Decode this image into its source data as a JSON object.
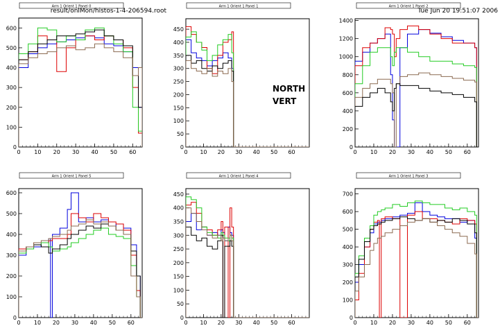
{
  "header": {
    "file_path": "result/onlMon/histos-1-4-206594.root",
    "timestamp": "Tue Jun 20 19:51:07 2006"
  },
  "annotation": {
    "line1": "NORTH",
    "line2": "VERT"
  },
  "series_colors": {
    "blue": "#0000dd",
    "red": "#dd0000",
    "green": "#22cc22",
    "black": "#000000",
    "brown": "#8b6a50"
  },
  "chart_data": [
    {
      "type": "line",
      "title": "Arm 1 Orient 1 Panel 0",
      "xlim": [
        0,
        65
      ],
      "ylim": [
        0,
        650
      ],
      "xticks": [
        0,
        10,
        20,
        30,
        40,
        50,
        60
      ],
      "yticks": [
        0,
        100,
        200,
        300,
        400,
        500,
        600
      ],
      "x": [
        0,
        5,
        10,
        15,
        20,
        25,
        30,
        35,
        40,
        45,
        50,
        55,
        60,
        63,
        65
      ],
      "series": [
        {
          "color": "blue",
          "values": [
            400,
            470,
            500,
            520,
            530,
            540,
            550,
            560,
            550,
            520,
            510,
            480,
            400,
            200,
            0
          ]
        },
        {
          "color": "red",
          "values": [
            440,
            480,
            560,
            540,
            380,
            500,
            540,
            560,
            540,
            560,
            540,
            500,
            300,
            70,
            0
          ]
        },
        {
          "color": "green",
          "values": [
            470,
            520,
            600,
            590,
            530,
            560,
            540,
            590,
            600,
            560,
            520,
            480,
            200,
            80,
            0
          ]
        },
        {
          "color": "black",
          "values": [
            440,
            480,
            520,
            540,
            560,
            560,
            570,
            580,
            590,
            560,
            540,
            510,
            360,
            200,
            0
          ]
        },
        {
          "color": "brown",
          "values": [
            420,
            450,
            470,
            480,
            500,
            510,
            490,
            500,
            520,
            500,
            480,
            450,
            360,
            400,
            0
          ]
        }
      ]
    },
    {
      "type": "line",
      "title": "Arm 1 Orient 1 Panel 1",
      "xlim": [
        0,
        70
      ],
      "ylim": [
        0,
        490
      ],
      "xticks": [
        0,
        10,
        20,
        30,
        40,
        50,
        60
      ],
      "yticks": [
        0,
        50,
        100,
        150,
        200,
        250,
        300,
        350,
        400,
        450
      ],
      "x": [
        0,
        3,
        6,
        9,
        12,
        15,
        18,
        21,
        24,
        26,
        27,
        70
      ],
      "series": [
        {
          "color": "blue",
          "values": [
            410,
            360,
            340,
            330,
            310,
            330,
            340,
            360,
            340,
            300,
            0,
            0
          ]
        },
        {
          "color": "red",
          "values": [
            460,
            430,
            400,
            380,
            300,
            280,
            350,
            400,
            410,
            440,
            0,
            0
          ]
        },
        {
          "color": "green",
          "values": [
            420,
            440,
            400,
            370,
            330,
            350,
            390,
            410,
            430,
            360,
            0,
            0
          ]
        },
        {
          "color": "black",
          "values": [
            350,
            320,
            330,
            300,
            290,
            310,
            300,
            320,
            330,
            290,
            0,
            0
          ]
        },
        {
          "color": "brown",
          "values": [
            330,
            300,
            290,
            280,
            300,
            270,
            290,
            280,
            300,
            250,
            0,
            0
          ]
        }
      ]
    },
    {
      "type": "line",
      "title": "Arm 1 Orient 1 Panel 2",
      "xlim": [
        0,
        66
      ],
      "ylim": [
        0,
        1420
      ],
      "xticks": [
        0,
        10,
        20,
        30,
        40,
        50,
        60
      ],
      "yticks": [
        0,
        200,
        400,
        600,
        800,
        1000,
        1200,
        1400
      ],
      "x": [
        0,
        4,
        8,
        12,
        16,
        19,
        20,
        21,
        22,
        24,
        28,
        34,
        40,
        46,
        52,
        58,
        64,
        65
      ],
      "series": [
        {
          "color": "blue",
          "values": [
            950,
            1050,
            1150,
            1200,
            1250,
            800,
            300,
            0,
            0,
            1100,
            1250,
            1300,
            1260,
            1220,
            1180,
            1150,
            1100,
            0
          ]
        },
        {
          "color": "red",
          "values": [
            900,
            1100,
            1150,
            1200,
            1320,
            1300,
            1250,
            1000,
            1200,
            1300,
            1340,
            1300,
            1250,
            1200,
            1150,
            1150,
            1100,
            0
          ]
        },
        {
          "color": "green",
          "values": [
            700,
            900,
            1050,
            1100,
            1100,
            1000,
            900,
            1050,
            1100,
            1100,
            1050,
            1000,
            950,
            950,
            920,
            900,
            880,
            0
          ]
        },
        {
          "color": "brown",
          "values": [
            550,
            650,
            700,
            750,
            750,
            700,
            600,
            0,
            700,
            780,
            800,
            820,
            800,
            780,
            760,
            740,
            720,
            0
          ]
        },
        {
          "color": "black",
          "values": [
            450,
            550,
            600,
            650,
            600,
            500,
            400,
            650,
            700,
            680,
            680,
            650,
            620,
            600,
            580,
            550,
            500,
            0
          ]
        }
      ]
    },
    {
      "type": "line",
      "title": "Arm 1 Orient 1 Panel 5",
      "xlim": [
        0,
        66
      ],
      "ylim": [
        0,
        620
      ],
      "xticks": [
        0,
        10,
        20,
        30,
        40,
        50,
        60
      ],
      "yticks": [
        0,
        100,
        200,
        300,
        400,
        500,
        600
      ],
      "x": [
        0,
        4,
        8,
        12,
        16,
        17,
        18,
        22,
        26,
        28,
        32,
        36,
        40,
        44,
        48,
        52,
        56,
        60,
        63,
        65
      ],
      "series": [
        {
          "color": "blue",
          "values": [
            300,
            330,
            340,
            360,
            380,
            0,
            400,
            430,
            520,
            600,
            460,
            480,
            460,
            470,
            440,
            450,
            430,
            350,
            200,
            0
          ]
        },
        {
          "color": "red",
          "values": [
            330,
            340,
            360,
            360,
            370,
            370,
            380,
            380,
            400,
            500,
            480,
            460,
            500,
            480,
            460,
            450,
            420,
            300,
            130,
            0
          ]
        },
        {
          "color": "green",
          "values": [
            310,
            330,
            350,
            360,
            340,
            340,
            320,
            330,
            340,
            360,
            380,
            400,
            420,
            430,
            400,
            390,
            380,
            250,
            100,
            0
          ]
        },
        {
          "color": "black",
          "values": [
            320,
            340,
            350,
            340,
            310,
            310,
            330,
            350,
            380,
            400,
            420,
            440,
            430,
            450,
            440,
            420,
            400,
            320,
            200,
            0
          ]
        },
        {
          "color": "brown",
          "values": [
            320,
            340,
            360,
            370,
            380,
            380,
            390,
            400,
            420,
            440,
            450,
            470,
            450,
            460,
            440,
            420,
            400,
            200,
            100,
            0
          ]
        }
      ]
    },
    {
      "type": "line",
      "title": "Arm 1 Orient 1 Panel 4",
      "xlim": [
        0,
        70
      ],
      "ylim": [
        0,
        470
      ],
      "xticks": [
        0,
        10,
        20,
        30,
        40,
        50,
        60
      ],
      "yticks": [
        0,
        50,
        100,
        150,
        200,
        250,
        300,
        350,
        400,
        450
      ],
      "x": [
        0,
        3,
        6,
        9,
        12,
        15,
        18,
        20,
        21,
        22,
        24,
        25,
        26,
        27,
        70
      ],
      "series": [
        {
          "color": "blue",
          "values": [
            350,
            380,
            320,
            330,
            300,
            310,
            300,
            320,
            310,
            280,
            330,
            310,
            300,
            0,
            0
          ]
        },
        {
          "color": "red",
          "values": [
            410,
            420,
            380,
            330,
            320,
            300,
            320,
            350,
            0,
            330,
            0,
            400,
            330,
            0,
            0
          ]
        },
        {
          "color": "green",
          "values": [
            440,
            430,
            400,
            330,
            310,
            300,
            290,
            310,
            300,
            290,
            280,
            300,
            290,
            0,
            0
          ]
        },
        {
          "color": "black",
          "values": [
            330,
            300,
            280,
            290,
            260,
            250,
            280,
            300,
            0,
            260,
            260,
            280,
            260,
            0,
            0
          ]
        },
        {
          "color": "brown",
          "values": [
            400,
            380,
            350,
            320,
            300,
            290,
            300,
            280,
            290,
            280,
            290,
            300,
            280,
            0,
            0
          ]
        }
      ]
    },
    {
      "type": "line",
      "title": "Arm 1 Orient 1 Panel 3",
      "xlim": [
        0,
        66
      ],
      "ylim": [
        0,
        730
      ],
      "xticks": [
        0,
        10,
        20,
        30,
        40,
        50,
        60
      ],
      "yticks": [
        0,
        100,
        200,
        300,
        400,
        500,
        600,
        700
      ],
      "x": [
        0,
        2,
        5,
        8,
        10,
        12,
        13,
        14,
        16,
        20,
        24,
        28,
        32,
        36,
        40,
        44,
        48,
        52,
        56,
        60,
        64,
        65
      ],
      "series": [
        {
          "color": "blue",
          "values": [
            200,
            300,
            400,
            480,
            530,
            540,
            540,
            550,
            560,
            570,
            580,
            590,
            650,
            600,
            580,
            570,
            560,
            560,
            540,
            550,
            450,
            0
          ]
        },
        {
          "color": "red",
          "values": [
            100,
            250,
            400,
            500,
            540,
            550,
            0,
            560,
            570,
            560,
            0,
            580,
            600,
            560,
            560,
            550,
            540,
            530,
            560,
            550,
            530,
            0
          ]
        },
        {
          "color": "green",
          "values": [
            250,
            350,
            450,
            520,
            580,
            600,
            600,
            610,
            620,
            640,
            630,
            650,
            660,
            650,
            640,
            640,
            620,
            610,
            620,
            600,
            580,
            0
          ]
        },
        {
          "color": "black",
          "values": [
            230,
            330,
            430,
            500,
            520,
            530,
            530,
            540,
            550,
            560,
            570,
            560,
            550,
            560,
            540,
            550,
            540,
            560,
            550,
            530,
            480,
            0
          ]
        },
        {
          "color": "brown",
          "values": [
            150,
            230,
            300,
            380,
            420,
            450,
            450,
            460,
            480,
            500,
            520,
            540,
            550,
            560,
            540,
            520,
            500,
            480,
            460,
            420,
            360,
            0
          ]
        }
      ]
    }
  ]
}
